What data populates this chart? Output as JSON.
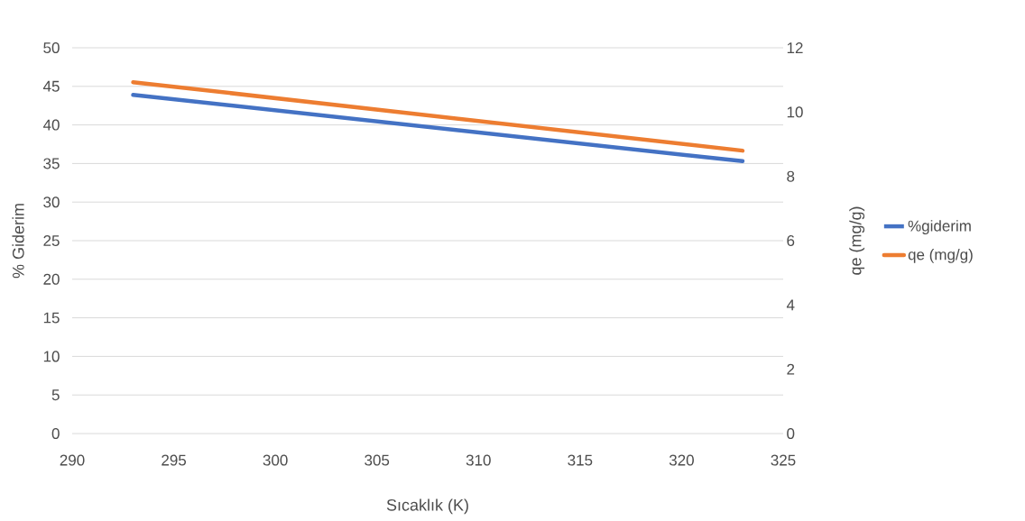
{
  "chart_data": {
    "type": "line",
    "xlabel": "Sıcaklık (K)",
    "ylabel": "% Giderim",
    "y2label": "qe (mg/g)",
    "xlim": [
      290,
      325
    ],
    "xticks": [
      290,
      295,
      300,
      305,
      310,
      315,
      320,
      325
    ],
    "ylim": [
      0,
      50
    ],
    "yticks": [
      0,
      5,
      10,
      15,
      20,
      25,
      30,
      35,
      40,
      45,
      50
    ],
    "y2lim": [
      0,
      12
    ],
    "y2ticks": [
      0,
      2,
      4,
      6,
      8,
      10,
      12
    ],
    "x": [
      293,
      323
    ],
    "grid": "y",
    "legend": "right",
    "marker": "none",
    "line_style": "solid",
    "series": [
      {
        "name": "%giderim",
        "color": "#4472c4",
        "values": [
          43.9,
          35.3
        ]
      },
      {
        "name": "qe (mg/g)",
        "color": "#ed7d31",
        "axis": "y2",
        "values": [
          10.93,
          8.8
        ]
      }
    ]
  }
}
